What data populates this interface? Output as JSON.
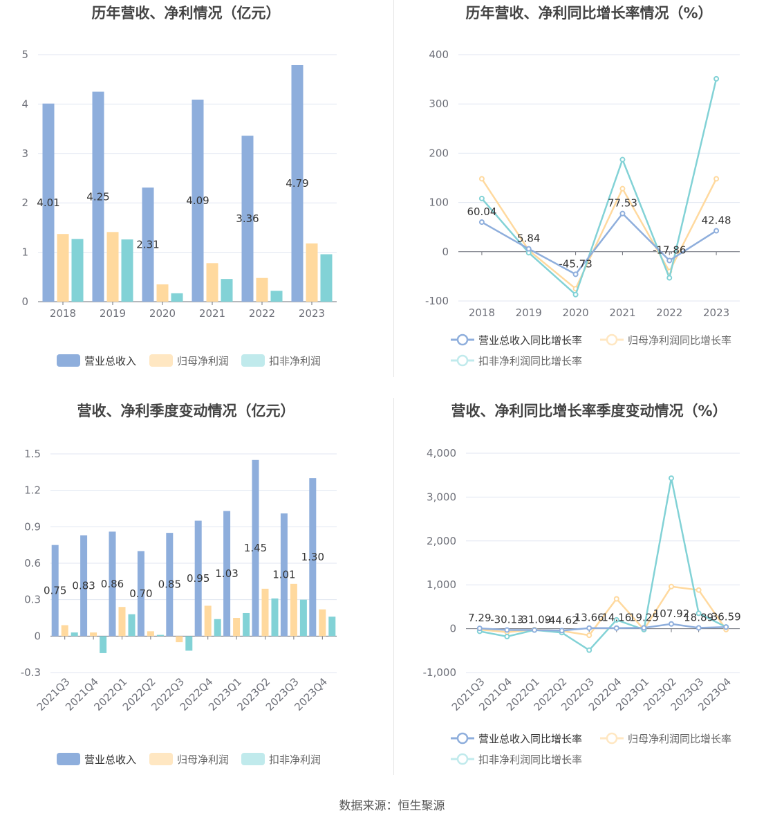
{
  "colors": {
    "revenue": "#8eaedc",
    "net_profit": "#ffd99e",
    "deducted": "#82d2d6",
    "grid": "#e0e6f1",
    "axis": "#6e7079"
  },
  "legend_labels": {
    "revenue": "营业总收入",
    "net_profit": "归母净利润",
    "deducted": "扣非净利润",
    "revenue_growth": "营业总收入同比增长率",
    "net_profit_growth": "归母净利润同比增长率",
    "deducted_growth": "扣非净利润同比增长率"
  },
  "source": "数据来源：恒生聚源",
  "chart_data": [
    {
      "id": "annual",
      "type": "bar",
      "title": "历年营收、净利情况（亿元）",
      "categories": [
        "2018",
        "2019",
        "2020",
        "2021",
        "2022",
        "2023"
      ],
      "ylim": [
        0,
        5
      ],
      "yticks": [
        0,
        1,
        2,
        3,
        4,
        5
      ],
      "ytick_labels": [
        "0",
        "1",
        "2",
        "3",
        "4",
        "5"
      ],
      "grid": true,
      "legend": "bottom",
      "series": [
        {
          "name": "营业总收入",
          "values": [
            4.01,
            4.25,
            2.31,
            4.09,
            3.36,
            4.79
          ],
          "labels": [
            "4.01",
            "4.25",
            "2.31",
            "4.09",
            "3.36",
            "4.79"
          ]
        },
        {
          "name": "归母净利润",
          "values": [
            1.37,
            1.41,
            0.35,
            0.78,
            0.48,
            1.18
          ]
        },
        {
          "name": "扣非净利润",
          "values": [
            1.27,
            1.26,
            0.17,
            0.46,
            0.22,
            0.96
          ]
        }
      ]
    },
    {
      "id": "annual_growth",
      "type": "line",
      "title": "历年营收、净利同比增长率情况（%）",
      "categories": [
        "2018",
        "2019",
        "2020",
        "2021",
        "2022",
        "2023"
      ],
      "ylim": [
        -100,
        400
      ],
      "yticks": [
        -100,
        0,
        100,
        200,
        300,
        400
      ],
      "ytick_labels": [
        "-100",
        "0",
        "100",
        "200",
        "300",
        "400"
      ],
      "grid": true,
      "legend": "bottom",
      "series": [
        {
          "name": "营业总收入同比增长率",
          "values": [
            60.04,
            5.84,
            -45.73,
            77.53,
            -17.86,
            42.48
          ],
          "labels": [
            "60.04",
            "5.84",
            "-45.73",
            "77.53",
            "-17.86",
            "42.48"
          ]
        },
        {
          "name": "归母净利润同比增长率",
          "values": [
            148,
            3,
            -75,
            128,
            -40,
            148
          ]
        },
        {
          "name": "扣非净利润同比增长率",
          "values": [
            108,
            -2,
            -87,
            187,
            -53,
            351
          ]
        }
      ]
    },
    {
      "id": "quarterly",
      "type": "bar",
      "title": "营收、净利季度变动情况（亿元）",
      "categories": [
        "2021Q3",
        "2021Q4",
        "2022Q1",
        "2022Q2",
        "2022Q3",
        "2022Q4",
        "2023Q1",
        "2023Q2",
        "2023Q3",
        "2023Q4"
      ],
      "ylim": [
        -0.3,
        1.5
      ],
      "yticks": [
        -0.3,
        0,
        0.3,
        0.6,
        0.9,
        1.2,
        1.5
      ],
      "ytick_labels": [
        "-0.3",
        "0",
        "0.3",
        "0.6",
        "0.9",
        "1.2",
        "1.5"
      ],
      "grid": true,
      "legend": "bottom",
      "series": [
        {
          "name": "营业总收入",
          "values": [
            0.75,
            0.83,
            0.86,
            0.7,
            0.85,
            0.95,
            1.03,
            1.45,
            1.01,
            1.3
          ],
          "labels": [
            "0.75",
            "0.83",
            "0.86",
            "0.70",
            "0.85",
            "0.95",
            "1.03",
            "1.45",
            "1.01",
            "1.30"
          ]
        },
        {
          "name": "归母净利润",
          "values": [
            0.09,
            0.03,
            0.24,
            0.04,
            -0.05,
            0.25,
            0.15,
            0.39,
            0.43,
            0.22
          ]
        },
        {
          "name": "扣非净利润",
          "values": [
            0.03,
            -0.14,
            0.18,
            0.01,
            -0.12,
            0.14,
            0.19,
            0.31,
            0.3,
            0.16
          ]
        }
      ]
    },
    {
      "id": "quarterly_growth",
      "type": "line",
      "title": "营收、净利同比增长率季度变动情况（%）",
      "categories": [
        "2021Q3",
        "2021Q4",
        "2022Q1",
        "2022Q2",
        "2022Q3",
        "2022Q4",
        "2023Q1",
        "2023Q2",
        "2023Q3",
        "2023Q4"
      ],
      "ylim": [
        -1000,
        4000
      ],
      "yticks": [
        -1000,
        0,
        1000,
        2000,
        3000,
        4000
      ],
      "ytick_labels": [
        "-1,000",
        "0",
        "1,000",
        "2,000",
        "3,000",
        "4,000"
      ],
      "grid": true,
      "legend": "bottom",
      "series": [
        {
          "name": "营业总收入同比增长率",
          "values": [
            7.29,
            -30.13,
            -31.09,
            -44.62,
            13.66,
            14.16,
            19.25,
            107.92,
            18.89,
            36.59
          ],
          "labels": [
            "7.29",
            "-30.13",
            "-31.09",
            "-44.62",
            "13.66",
            "14.16",
            "19.25",
            "107.92",
            "18.89",
            "36.59"
          ]
        },
        {
          "name": "归母净利润同比增长率",
          "values": [
            -20,
            -80,
            -20,
            -50,
            -150,
            680,
            -20,
            960,
            880,
            -20
          ]
        },
        {
          "name": "扣非净利润同比增长率",
          "values": [
            -60,
            -180,
            -30,
            -90,
            -490,
            200,
            -20,
            3430,
            350,
            40
          ]
        }
      ]
    }
  ]
}
